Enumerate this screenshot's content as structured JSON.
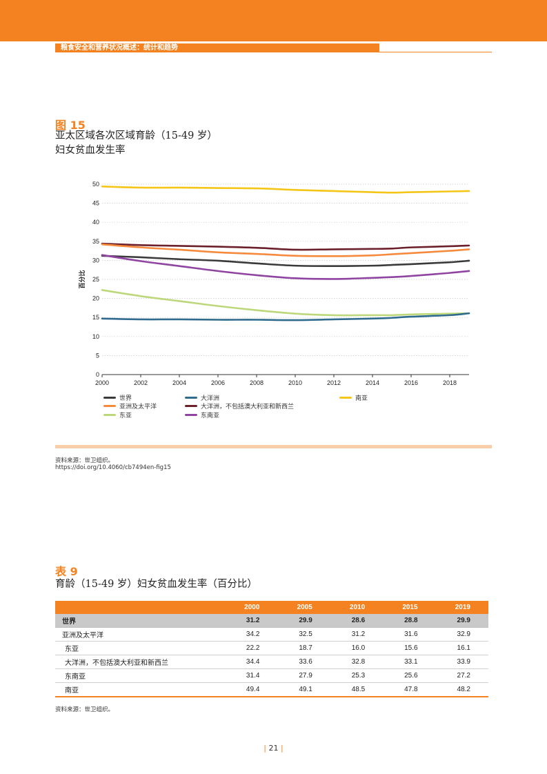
{
  "header": {
    "title": "粮食安全和营养状况概述：统计和趋势"
  },
  "figure": {
    "label": "图 15",
    "title_line1": "亚太区域各次区域育龄（15-49 岁）",
    "title_line2": "妇女贫血发生率",
    "source": "资料来源：世卫组织。",
    "doi": "https://doi.org/10.4060/cb7494en-fig15"
  },
  "chart_data": {
    "type": "line",
    "title": "亚太区域各次区域育龄（15-49 岁）妇女贫血发生率",
    "xlabel": "",
    "ylabel": "百分比",
    "xlim": [
      2000,
      2019
    ],
    "ylim": [
      0,
      50
    ],
    "x_ticks": [
      2000,
      2002,
      2004,
      2006,
      2008,
      2010,
      2012,
      2014,
      2016,
      2018
    ],
    "y_ticks": [
      0,
      5,
      10,
      15,
      20,
      25,
      30,
      35,
      40,
      45,
      50
    ],
    "grid": "horizontal dotted",
    "legend_position": "bottom",
    "x": [
      2000,
      2002,
      2004,
      2006,
      2008,
      2010,
      2012,
      2014,
      2015,
      2016,
      2018,
      2019
    ],
    "series": [
      {
        "name": "世界",
        "color": "#3a3a3a",
        "values": [
          31.2,
          30.8,
          30.3,
          29.9,
          29.2,
          28.6,
          28.5,
          28.6,
          28.8,
          29.0,
          29.5,
          29.9
        ]
      },
      {
        "name": "亚洲及太平洋",
        "color": "#f58a3c",
        "values": [
          34.2,
          33.4,
          32.8,
          32.1,
          31.7,
          31.2,
          31.1,
          31.3,
          31.6,
          31.9,
          32.5,
          32.9
        ]
      },
      {
        "name": "东亚",
        "color": "#bcd87a",
        "values": [
          22.2,
          20.6,
          19.3,
          18.0,
          16.9,
          16.0,
          15.6,
          15.6,
          15.6,
          15.8,
          16.0,
          16.1
        ]
      },
      {
        "name": "大洋洲",
        "color": "#2f6a8f",
        "values": [
          14.7,
          14.5,
          14.5,
          14.4,
          14.4,
          14.3,
          14.5,
          14.7,
          14.9,
          15.2,
          15.6,
          16.1
        ]
      },
      {
        "name": "大洋洲，不包括澳大利亚和新西兰",
        "color": "#6b1f2a",
        "values": [
          34.4,
          34.0,
          33.8,
          33.6,
          33.3,
          32.8,
          32.9,
          33.0,
          33.1,
          33.4,
          33.7,
          33.9
        ]
      },
      {
        "name": "东南亚",
        "color": "#8e44a0",
        "values": [
          31.4,
          29.8,
          28.5,
          27.2,
          26.1,
          25.3,
          25.1,
          25.4,
          25.6,
          25.9,
          26.7,
          27.2
        ]
      },
      {
        "name": "南亚",
        "color": "#f5c518",
        "values": [
          49.4,
          49.1,
          49.1,
          49.0,
          48.9,
          48.5,
          48.2,
          47.9,
          47.8,
          47.9,
          48.1,
          48.2
        ]
      }
    ]
  },
  "table": {
    "label": "表 9",
    "title": "育龄（15-49 岁）妇女贫血发生率（百分比）",
    "columns": [
      "2000",
      "2005",
      "2010",
      "2015",
      "2019"
    ],
    "rows": [
      {
        "name": "世界",
        "values": [
          "31.2",
          "29.9",
          "28.6",
          "28.8",
          "29.9"
        ]
      },
      {
        "name": "亚洲及太平洋",
        "values": [
          "34.2",
          "32.5",
          "31.2",
          "31.6",
          "32.9"
        ]
      },
      {
        "name": "东亚",
        "values": [
          "22.2",
          "18.7",
          "16.0",
          "15.6",
          "16.1"
        ]
      },
      {
        "name": "大洋洲，不包括澳大利亚和新西兰",
        "values": [
          "34.4",
          "33.6",
          "32.8",
          "33.1",
          "33.9"
        ]
      },
      {
        "name": "东南亚",
        "values": [
          "31.4",
          "27.9",
          "25.3",
          "25.6",
          "27.2"
        ]
      },
      {
        "name": "南亚",
        "values": [
          "49.4",
          "49.1",
          "48.5",
          "47.8",
          "48.2"
        ]
      }
    ],
    "source": "资料来源：世卫组织。"
  },
  "page": {
    "number": "21"
  }
}
